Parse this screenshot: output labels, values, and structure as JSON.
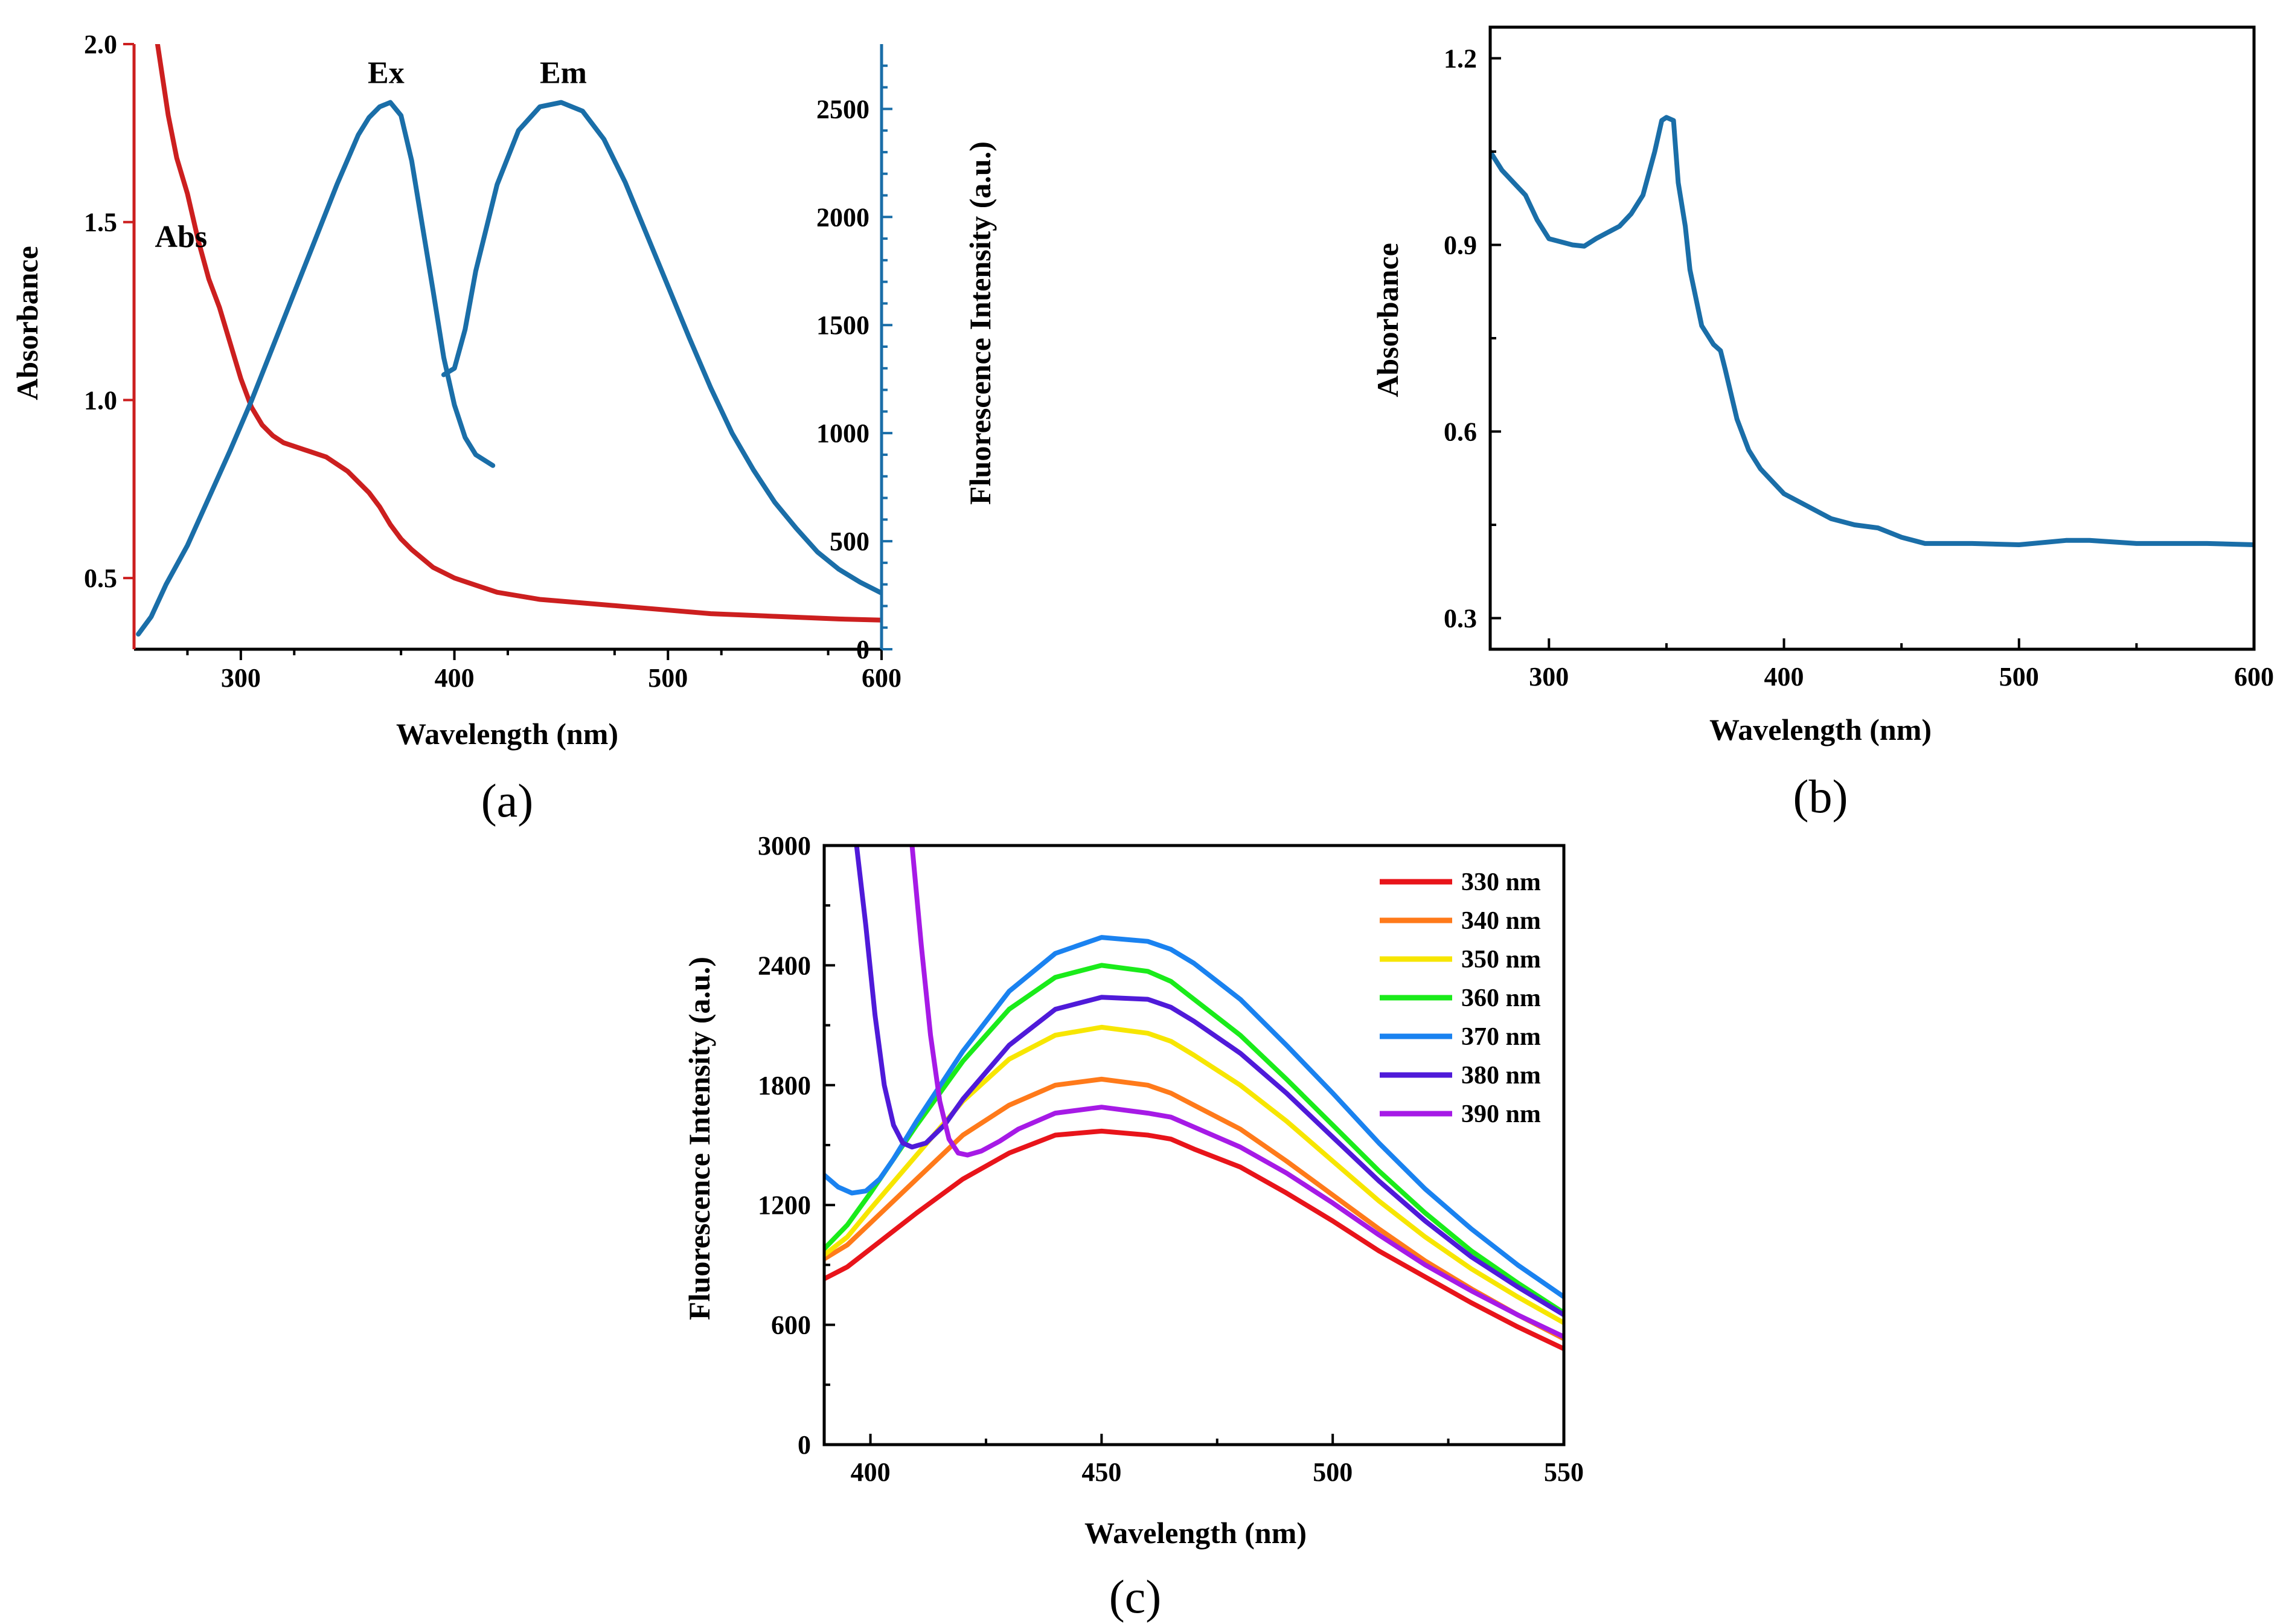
{
  "chart_data": [
    {
      "id": "a",
      "type": "line",
      "panel_label": "(a)",
      "xlabel": "Wavelength (nm)",
      "ylabel_left": "Absorbance",
      "ylabel_right": "Fluorescence Intensity (a.u.)",
      "xlim": [
        250,
        600
      ],
      "ylim_left": [
        0.3,
        2.0
      ],
      "ylim_right": [
        0,
        2800
      ],
      "xticks": [
        300,
        400,
        500,
        600
      ],
      "yticks_left": [
        0.5,
        1.0,
        1.5,
        2.0
      ],
      "yticks_left_labels": [
        "0.5",
        "1.0",
        "1.5",
        "2.0"
      ],
      "yticks_right": [
        0,
        500,
        1000,
        1500,
        2000,
        2500
      ],
      "left_color": "#cc1f1f",
      "right_color": "#1a6ea8",
      "series": [
        {
          "name": "Abs",
          "axis": "left",
          "color": "#cc1f1f",
          "label_at": [
            272,
            1.43
          ],
          "x": [
            261,
            263,
            266,
            270,
            275,
            280,
            285,
            290,
            295,
            300,
            305,
            310,
            315,
            320,
            330,
            340,
            345,
            350,
            355,
            360,
            365,
            370,
            375,
            380,
            390,
            400,
            410,
            420,
            440,
            460,
            480,
            500,
            520,
            540,
            560,
            580,
            600
          ],
          "y": [
            2.0,
            1.92,
            1.8,
            1.68,
            1.58,
            1.45,
            1.34,
            1.26,
            1.16,
            1.06,
            0.98,
            0.93,
            0.9,
            0.88,
            0.86,
            0.84,
            0.82,
            0.8,
            0.77,
            0.74,
            0.7,
            0.65,
            0.61,
            0.58,
            0.53,
            0.5,
            0.48,
            0.46,
            0.44,
            0.43,
            0.42,
            0.41,
            0.4,
            0.395,
            0.39,
            0.385,
            0.382
          ]
        },
        {
          "name": "Ex",
          "axis": "right",
          "color": "#1a6ea8",
          "label_at": [
            368,
            2620
          ],
          "x": [
            252,
            258,
            265,
            275,
            285,
            295,
            305,
            315,
            325,
            335,
            345,
            355,
            360,
            365,
            370,
            375,
            380,
            385,
            390,
            395,
            400,
            405,
            410,
            418
          ],
          "y": [
            70,
            150,
            300,
            480,
            700,
            920,
            1150,
            1400,
            1650,
            1900,
            2150,
            2380,
            2460,
            2510,
            2530,
            2470,
            2260,
            1960,
            1660,
            1350,
            1130,
            980,
            900,
            850
          ]
        },
        {
          "name": "Em",
          "axis": "right",
          "color": "#1a6ea8",
          "label_at": [
            451,
            2620
          ],
          "x": [
            395,
            400,
            405,
            410,
            420,
            430,
            440,
            450,
            460,
            470,
            480,
            490,
            500,
            510,
            520,
            530,
            540,
            550,
            560,
            570,
            580,
            590,
            600
          ],
          "y": [
            1270,
            1300,
            1480,
            1750,
            2150,
            2400,
            2510,
            2530,
            2490,
            2360,
            2160,
            1920,
            1680,
            1440,
            1210,
            1000,
            830,
            680,
            560,
            450,
            370,
            310,
            260
          ]
        }
      ]
    },
    {
      "id": "b",
      "type": "line",
      "panel_label": "(b)",
      "xlabel": "Wavelength (nm)",
      "ylabel": "Absorbance",
      "xlim": [
        275,
        600
      ],
      "ylim": [
        0.25,
        1.25
      ],
      "xticks": [
        300,
        400,
        500,
        600
      ],
      "yticks": [
        0.3,
        0.6,
        0.9,
        1.2
      ],
      "yticks_labels": [
        "0.3",
        "0.6",
        "0.9",
        "1.2"
      ],
      "series": [
        {
          "name": "Absorbance",
          "color": "#1a6ea8",
          "x": [
            275,
            280,
            285,
            290,
            295,
            300,
            305,
            310,
            315,
            320,
            325,
            330,
            335,
            340,
            345,
            348,
            350,
            353,
            355,
            358,
            360,
            365,
            370,
            373,
            375,
            380,
            385,
            390,
            400,
            410,
            420,
            430,
            440,
            450,
            460,
            470,
            480,
            500,
            520,
            530,
            550,
            580,
            600
          ],
          "y": [
            1.05,
            1.02,
            1.0,
            0.98,
            0.94,
            0.91,
            0.905,
            0.9,
            0.898,
            0.91,
            0.92,
            0.93,
            0.95,
            0.98,
            1.05,
            1.1,
            1.105,
            1.1,
            1.0,
            0.93,
            0.86,
            0.77,
            0.74,
            0.73,
            0.7,
            0.62,
            0.57,
            0.54,
            0.5,
            0.48,
            0.46,
            0.45,
            0.445,
            0.43,
            0.42,
            0.42,
            0.42,
            0.418,
            0.425,
            0.425,
            0.42,
            0.42,
            0.418
          ]
        }
      ]
    },
    {
      "id": "c",
      "type": "line",
      "panel_label": "(c)",
      "xlabel": "Wavelength (nm)",
      "ylabel": "Fluorescence Intensity (a.u.)",
      "xlim": [
        390,
        550
      ],
      "ylim": [
        0,
        3000
      ],
      "xticks": [
        400,
        450,
        500,
        550
      ],
      "yticks": [
        0,
        600,
        1200,
        1800,
        2400,
        3000
      ],
      "legend_position": "top-right",
      "series": [
        {
          "name": "330 nm",
          "color": "#e8141a",
          "x": [
            390,
            395,
            400,
            410,
            420,
            430,
            440,
            450,
            460,
            465,
            470,
            480,
            490,
            500,
            510,
            520,
            530,
            540,
            550
          ],
          "y": [
            830,
            890,
            980,
            1160,
            1330,
            1460,
            1550,
            1570,
            1550,
            1530,
            1480,
            1390,
            1260,
            1120,
            970,
            840,
            710,
            590,
            480
          ]
        },
        {
          "name": "340 nm",
          "color": "#ff7a1a",
          "x": [
            390,
            395,
            400,
            410,
            420,
            430,
            440,
            450,
            460,
            465,
            470,
            480,
            490,
            500,
            510,
            520,
            530,
            540,
            550
          ],
          "y": [
            930,
            1000,
            1110,
            1330,
            1550,
            1700,
            1800,
            1830,
            1800,
            1760,
            1700,
            1580,
            1420,
            1250,
            1080,
            920,
            780,
            650,
            530
          ]
        },
        {
          "name": "350 nm",
          "color": "#f7e600",
          "x": [
            390,
            395,
            400,
            410,
            420,
            430,
            440,
            450,
            460,
            465,
            470,
            480,
            490,
            500,
            510,
            520,
            530,
            540,
            550
          ],
          "y": [
            950,
            1040,
            1180,
            1450,
            1720,
            1930,
            2050,
            2090,
            2060,
            2020,
            1950,
            1800,
            1620,
            1420,
            1220,
            1040,
            880,
            740,
            610
          ]
        },
        {
          "name": "360 nm",
          "color": "#1aeb1a",
          "x": [
            390,
            395,
            400,
            410,
            420,
            430,
            440,
            450,
            460,
            465,
            470,
            480,
            490,
            500,
            510,
            520,
            530,
            540,
            550
          ],
          "y": [
            980,
            1100,
            1260,
            1600,
            1920,
            2180,
            2340,
            2400,
            2370,
            2320,
            2230,
            2050,
            1830,
            1600,
            1370,
            1160,
            970,
            810,
            660
          ]
        },
        {
          "name": "370 nm",
          "color": "#1a82f0",
          "x": [
            390,
            393,
            396,
            399,
            402,
            405,
            410,
            420,
            430,
            440,
            450,
            460,
            465,
            470,
            480,
            490,
            500,
            510,
            520,
            530,
            540,
            550
          ],
          "y": [
            1350,
            1290,
            1260,
            1270,
            1330,
            1430,
            1620,
            1970,
            2270,
            2460,
            2540,
            2520,
            2480,
            2410,
            2230,
            2000,
            1760,
            1510,
            1280,
            1080,
            900,
            740
          ]
        },
        {
          "name": "380 nm",
          "color": "#4f1ad9",
          "x": [
            397,
            399,
            401,
            403,
            405,
            407,
            409,
            412,
            416,
            420,
            430,
            440,
            450,
            460,
            465,
            470,
            480,
            490,
            500,
            510,
            520,
            530,
            540,
            550
          ],
          "y": [
            3000,
            2600,
            2150,
            1800,
            1600,
            1510,
            1490,
            1510,
            1600,
            1730,
            2000,
            2180,
            2240,
            2230,
            2190,
            2120,
            1960,
            1760,
            1540,
            1320,
            1120,
            940,
            790,
            650
          ]
        },
        {
          "name": "390 nm",
          "color": "#a61ae6",
          "x": [
            409,
            411,
            413,
            415,
            417,
            419,
            421,
            424,
            428,
            432,
            440,
            450,
            460,
            465,
            470,
            480,
            490,
            500,
            510,
            520,
            530,
            540,
            550
          ],
          "y": [
            3000,
            2500,
            2050,
            1720,
            1530,
            1460,
            1450,
            1470,
            1520,
            1580,
            1660,
            1690,
            1660,
            1640,
            1590,
            1490,
            1360,
            1210,
            1050,
            900,
            770,
            650,
            540
          ]
        }
      ]
    }
  ]
}
